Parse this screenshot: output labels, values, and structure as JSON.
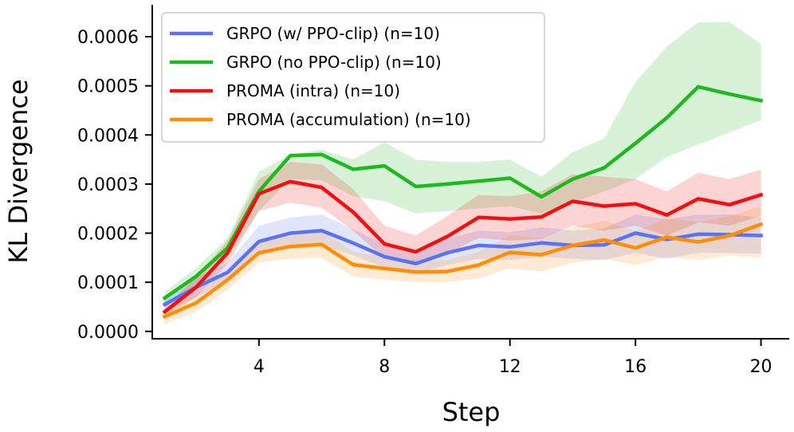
{
  "chart_data": {
    "type": "line",
    "title": "",
    "xlabel": "Step",
    "ylabel": "KL Divergence",
    "xlim": [
      0.6,
      20.9
    ],
    "ylim": [
      -1.5e-05,
      0.000665
    ],
    "xticks": [
      4,
      8,
      12,
      16,
      20
    ],
    "xtick_labels": [
      "4",
      "8",
      "12",
      "16",
      "20"
    ],
    "yticks": [
      0.0,
      0.0001,
      0.0002,
      0.0003,
      0.0004,
      0.0005,
      0.0006
    ],
    "ytick_labels": [
      "0.0000",
      "0.0001",
      "0.0002",
      "0.0003",
      "0.0004",
      "0.0005",
      "0.0006"
    ],
    "legend_position": "top-left",
    "grid": false,
    "x": [
      1,
      2,
      3,
      4,
      5,
      6,
      7,
      8,
      9,
      10,
      11,
      12,
      13,
      14,
      15,
      16,
      17,
      18,
      19,
      20
    ],
    "series": [
      {
        "name": "GRPO (w/ PPO-clip) (n=10)",
        "color": "#5b73f0",
        "values": [
          5.5e-05,
          9e-05,
          0.00012,
          0.000183,
          0.0002,
          0.000205,
          0.00018,
          0.000152,
          0.000138,
          0.00016,
          0.000175,
          0.000172,
          0.00018,
          0.000175,
          0.000176,
          0.0002,
          0.000187,
          0.000198,
          0.000197,
          0.000195
        ],
        "lower": [
          4e-05,
          7e-05,
          0.0001,
          0.000155,
          0.000172,
          0.000175,
          0.000155,
          0.00013,
          0.000118,
          0.000135,
          0.000148,
          0.000145,
          0.000152,
          0.000148,
          0.000145,
          0.00016,
          0.000148,
          0.00016,
          0.00016,
          0.000158
        ],
        "upper": [
          7e-05,
          0.00011,
          0.00014,
          0.000215,
          0.000232,
          0.000238,
          0.000208,
          0.000178,
          0.000162,
          0.000188,
          0.000205,
          0.000202,
          0.000212,
          0.000205,
          0.00021,
          0.000238,
          0.000228,
          0.000238,
          0.000238,
          0.000232
        ]
      },
      {
        "name": "GRPO (no PPO-clip) (n=10)",
        "color": "#1fb81f",
        "values": [
          6.8e-05,
          0.000112,
          0.00017,
          0.000285,
          0.000358,
          0.00036,
          0.00033,
          0.000337,
          0.000295,
          0.0003,
          0.000306,
          0.000312,
          0.000274,
          0.00031,
          0.000333,
          0.000383,
          0.000435,
          0.000498,
          0.000483,
          0.00047
        ],
        "lower": [
          5.5e-05,
          9.5e-05,
          0.00015,
          0.000245,
          0.00031,
          0.000308,
          0.000275,
          0.000265,
          0.00024,
          0.000245,
          0.00025,
          0.000255,
          0.00024,
          0.000262,
          0.000285,
          0.00031,
          0.000355,
          0.00038,
          0.000405,
          0.00043
        ],
        "upper": [
          8e-05,
          0.00013,
          0.00019,
          0.000325,
          0.00036,
          0.00037,
          0.00035,
          0.000385,
          0.00035,
          0.000345,
          0.000345,
          0.00035,
          0.000315,
          0.000365,
          0.000393,
          0.000508,
          0.00058,
          0.00063,
          0.00063,
          0.000585
        ]
      },
      {
        "name": "PROMA (intra) (n=10)",
        "color": "#f01010",
        "values": [
          4e-05,
          9e-05,
          0.00016,
          0.00028,
          0.000305,
          0.000293,
          0.000243,
          0.000178,
          0.000162,
          0.000193,
          0.000232,
          0.000229,
          0.000233,
          0.000265,
          0.000255,
          0.00026,
          0.000237,
          0.00027,
          0.000258,
          0.000278
        ],
        "lower": [
          3e-05,
          7e-05,
          0.000138,
          0.000245,
          0.000262,
          0.000252,
          0.000205,
          0.000148,
          0.000135,
          0.000158,
          0.00019,
          0.000185,
          0.000188,
          0.000215,
          0.000205,
          0.000215,
          0.000195,
          0.000222,
          0.000215,
          0.000235
        ],
        "upper": [
          5e-05,
          0.00011,
          0.000185,
          0.00031,
          0.000345,
          0.00034,
          0.00029,
          0.000215,
          0.000195,
          0.000235,
          0.000278,
          0.000275,
          0.000285,
          0.00032,
          0.000315,
          0.00031,
          0.000285,
          0.000323,
          0.00031,
          0.00033
        ]
      },
      {
        "name": "PROMA (accumulation) (n=10)",
        "color": "#ff8c0a",
        "values": [
          3e-05,
          5.8e-05,
          0.000105,
          0.00016,
          0.000173,
          0.000177,
          0.000136,
          0.000128,
          0.000121,
          0.000122,
          0.000135,
          0.000161,
          0.000156,
          0.000175,
          0.000186,
          0.00017,
          0.000192,
          0.000182,
          0.000195,
          0.000218
        ],
        "lower": [
          1.5e-05,
          4e-05,
          8.5e-05,
          0.00014,
          0.000148,
          0.00015,
          0.000112,
          0.000105,
          0.0001,
          0.0001,
          0.000108,
          0.000128,
          0.000122,
          0.00014,
          0.000148,
          0.000135,
          0.000152,
          0.000145,
          0.000155,
          0.00015
        ],
        "upper": [
          4.5e-05,
          7.5e-05,
          0.000125,
          0.000182,
          0.0002,
          0.000205,
          0.000162,
          0.000152,
          0.000145,
          0.000145,
          0.000162,
          0.000195,
          0.00019,
          0.000212,
          0.000225,
          0.000205,
          0.00023,
          0.000222,
          0.000235,
          0.000255
        ]
      }
    ]
  }
}
